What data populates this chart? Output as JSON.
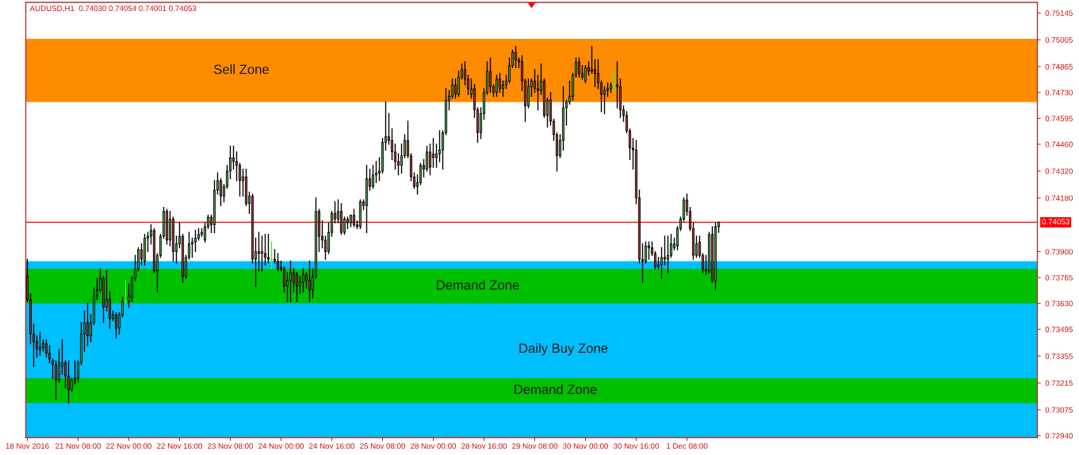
{
  "chart_data": {
    "type": "candlestick",
    "title": "AUDUSD,H1  0.74030 0.74054 0.74001 0.74053",
    "categories": [
      "18 Nov 2016",
      null,
      null,
      null,
      null,
      null,
      null,
      null,
      null,
      null,
      null,
      null,
      null,
      null,
      null,
      null,
      "21 Nov 08:00",
      null,
      null,
      null,
      null,
      null,
      null,
      null,
      null,
      null,
      null,
      null,
      null,
      null,
      null,
      null,
      "22 Nov 00:00",
      null,
      null,
      null,
      null,
      null,
      null,
      null,
      null,
      null,
      null,
      null,
      null,
      null,
      null,
      null,
      "22 Nov 16:00",
      null,
      null,
      null,
      null,
      null,
      null,
      null,
      null,
      null,
      null,
      null,
      null,
      null,
      null,
      null,
      "23 Nov 08:00",
      null,
      null,
      null,
      null,
      null,
      null,
      null,
      null,
      null,
      null,
      null,
      null,
      null,
      null,
      null,
      "24 Nov 00:00",
      null,
      null,
      null,
      null,
      null,
      null,
      null,
      null,
      null,
      null,
      null,
      null,
      null,
      null,
      null,
      "24 Nov 16:00",
      null,
      null,
      null,
      null,
      null,
      null,
      null,
      null,
      null,
      null,
      null,
      null,
      null,
      null,
      null,
      "25 Nov 08:00",
      null,
      null,
      null,
      null,
      null,
      null,
      null,
      null,
      null,
      null,
      null,
      null,
      null,
      null,
      null,
      "28 Nov 00:00",
      null,
      null,
      null,
      null,
      null,
      null,
      null,
      null,
      null,
      null,
      null,
      null,
      null,
      null,
      null,
      "28 Nov 16:00",
      null,
      null,
      null,
      null,
      null,
      null,
      null,
      null,
      null,
      null,
      null,
      null,
      null,
      null,
      null,
      "29 Nov 08:00",
      null,
      null,
      null,
      null,
      null,
      null,
      null,
      null,
      null,
      null,
      null,
      null,
      null,
      null,
      null,
      "30 Nov 00:00",
      null,
      null,
      null,
      null,
      null,
      null,
      null,
      null,
      null,
      null,
      null,
      null,
      null,
      null,
      null,
      "30 Nov 16:00",
      null,
      null,
      null,
      null,
      null,
      null,
      null,
      null,
      null,
      null,
      null,
      null,
      null,
      null,
      null,
      "1 Dec 08:00",
      null,
      null,
      null,
      null,
      null,
      null,
      null,
      null,
      null,
      null,
      null,
      null,
      null,
      null,
      null,
      null,
      null,
      null,
      null,
      null,
      null,
      null,
      null,
      null,
      null,
      null,
      null,
      null,
      null,
      null,
      null,
      null,
      null,
      null,
      null,
      null,
      null,
      null,
      null,
      null,
      null,
      null,
      null,
      null,
      null,
      null,
      null,
      null,
      null,
      null,
      null,
      null,
      null,
      null,
      null,
      null,
      null,
      null,
      null,
      null,
      null,
      null,
      null,
      null,
      null,
      null,
      null,
      null,
      null,
      null,
      null,
      null,
      null,
      null,
      null,
      null,
      null,
      null,
      null,
      null,
      null,
      null,
      null,
      null,
      null,
      null,
      null,
      null,
      null,
      null,
      null,
      null,
      null,
      null,
      null,
      null,
      null,
      null,
      null,
      null,
      null,
      null,
      null,
      null,
      null,
      null,
      null,
      null,
      null,
      null
    ],
    "ohlc": [
      [
        0.7377,
        0.7386,
        0.7364,
        0.7365
      ],
      [
        0.7365,
        0.7368,
        0.7342,
        0.7347
      ],
      [
        0.7347,
        0.7352,
        0.733,
        0.7343
      ],
      [
        0.7343,
        0.7346,
        0.7335,
        0.7339
      ],
      [
        0.7339,
        0.7348,
        0.7336,
        0.734
      ],
      [
        0.734,
        0.7344,
        0.7338,
        0.7342
      ],
      [
        0.7342,
        0.7344,
        0.7335,
        0.7337
      ],
      [
        0.7337,
        0.7341,
        0.7332,
        0.7334
      ],
      [
        0.7333,
        0.7334,
        0.7324,
        0.7331
      ],
      [
        0.7331,
        0.7333,
        0.7313,
        0.7323
      ],
      [
        0.7323,
        0.7339,
        0.7322,
        0.7332
      ],
      [
        0.733,
        0.7344,
        0.7326,
        0.7332
      ],
      [
        0.7332,
        0.7333,
        0.7319,
        0.7325
      ],
      [
        0.7325,
        0.7333,
        0.7311,
        0.7318
      ],
      [
        0.7318,
        0.7324,
        0.7317,
        0.7323
      ],
      [
        0.7323,
        0.7333,
        0.7321,
        0.7324
      ],
      [
        0.7324,
        0.7333,
        0.7322,
        0.7332
      ],
      [
        0.7332,
        0.7353,
        0.7331,
        0.7347
      ],
      [
        0.7347,
        0.7359,
        0.7338,
        0.7353
      ],
      [
        0.7353,
        0.7363,
        0.7341,
        0.7346
      ],
      [
        0.7346,
        0.7357,
        0.7343,
        0.7353
      ],
      [
        0.7353,
        0.7371,
        0.7352,
        0.7367
      ],
      [
        0.7367,
        0.7376,
        0.7365,
        0.737
      ],
      [
        0.737,
        0.7381,
        0.7369,
        0.7376
      ],
      [
        0.7376,
        0.7377,
        0.7353,
        0.7361
      ],
      [
        0.7361,
        0.738,
        0.7359,
        0.7365
      ],
      [
        0.7365,
        0.7369,
        0.735,
        0.7355
      ],
      [
        0.7355,
        0.7359,
        0.7354,
        0.7357
      ],
      [
        0.7357,
        0.7358,
        0.7345,
        0.735
      ],
      [
        0.735,
        0.7358,
        0.7347,
        0.7357
      ],
      [
        0.7357,
        0.7366,
        0.7356,
        0.7364
      ],
      [
        0.7364,
        0.7375,
        0.7363,
        0.7364
      ],
      [
        0.7364,
        0.7373,
        0.7361,
        0.7367
      ],
      [
        0.7366,
        0.7377,
        0.7364,
        0.7376
      ],
      [
        0.7376,
        0.7388,
        0.7375,
        0.7381
      ],
      [
        0.7381,
        0.7392,
        0.738,
        0.7391
      ],
      [
        0.7391,
        0.7394,
        0.7383,
        0.7386
      ],
      [
        0.7385,
        0.7399,
        0.7383,
        0.7397
      ],
      [
        0.7397,
        0.74,
        0.739,
        0.7398
      ],
      [
        0.7398,
        0.7404,
        0.7394,
        0.7401
      ],
      [
        0.7401,
        0.7402,
        0.7379,
        0.738
      ],
      [
        0.738,
        0.7389,
        0.7369,
        0.7388
      ],
      [
        0.7388,
        0.7399,
        0.7387,
        0.7398
      ],
      [
        0.7398,
        0.7413,
        0.7397,
        0.7411
      ],
      [
        0.7411,
        0.7412,
        0.7394,
        0.7396
      ],
      [
        0.7396,
        0.7411,
        0.7393,
        0.7407
      ],
      [
        0.7407,
        0.7408,
        0.7385,
        0.739
      ],
      [
        0.739,
        0.7398,
        0.7384,
        0.7394
      ],
      [
        0.7394,
        0.7405,
        0.7392,
        0.7398
      ],
      [
        0.7398,
        0.7399,
        0.7374,
        0.7377
      ],
      [
        0.7377,
        0.7388,
        0.7376,
        0.7387
      ],
      [
        0.7387,
        0.74,
        0.7386,
        0.7394
      ],
      [
        0.7394,
        0.7397,
        0.7387,
        0.7395
      ],
      [
        0.7395,
        0.7401,
        0.739,
        0.7397
      ],
      [
        0.7397,
        0.7402,
        0.7396,
        0.7399
      ],
      [
        0.7399,
        0.7402,
        0.7398,
        0.74
      ],
      [
        0.7396,
        0.7405,
        0.7395,
        0.7403
      ],
      [
        0.7403,
        0.7409,
        0.7402,
        0.7408
      ],
      [
        0.7408,
        0.7409,
        0.74,
        0.7404
      ],
      [
        0.7404,
        0.7427,
        0.74,
        0.7422
      ],
      [
        0.7422,
        0.7431,
        0.742,
        0.7427
      ],
      [
        0.7427,
        0.7428,
        0.7414,
        0.7419
      ],
      [
        0.7419,
        0.7425,
        0.7416,
        0.7424
      ],
      [
        0.7424,
        0.7435,
        0.7423,
        0.7432
      ],
      [
        0.7432,
        0.7445,
        0.7428,
        0.7439
      ],
      [
        0.7439,
        0.7445,
        0.7433,
        0.7437
      ],
      [
        0.7437,
        0.7442,
        0.7427,
        0.7435
      ],
      [
        0.7435,
        0.7436,
        0.7419,
        0.7427
      ],
      [
        0.7427,
        0.7433,
        0.7419,
        0.7429
      ],
      [
        0.7429,
        0.7433,
        0.7414,
        0.7415
      ],
      [
        0.7415,
        0.7421,
        0.741,
        0.7419
      ],
      [
        0.7419,
        0.742,
        0.7384,
        0.7386
      ],
      [
        0.7386,
        0.7397,
        0.7372,
        0.739
      ],
      [
        0.739,
        0.74,
        0.738,
        0.7389
      ],
      [
        0.739,
        0.7398,
        0.738,
        0.7389
      ],
      [
        0.7389,
        0.7399,
        0.7383,
        0.7387
      ],
      [
        0.7387,
        0.7399,
        0.7384,
        0.7386
      ],
      [
        0.7386,
        0.7395,
        0.7381,
        0.7386
      ],
      [
        0.7386,
        0.7391,
        0.7384,
        0.7385
      ],
      [
        0.7385,
        0.7389,
        0.738,
        0.7381
      ],
      [
        0.7381,
        0.7385,
        0.738,
        0.7382
      ],
      [
        0.7381,
        0.7382,
        0.7369,
        0.7372
      ],
      [
        0.7372,
        0.7379,
        0.7364,
        0.7375
      ],
      [
        0.7375,
        0.7385,
        0.7364,
        0.7379
      ],
      [
        0.7379,
        0.7381,
        0.7369,
        0.7374
      ],
      [
        0.7378,
        0.7379,
        0.7364,
        0.7372
      ],
      [
        0.7372,
        0.7377,
        0.7368,
        0.7374
      ],
      [
        0.7374,
        0.7381,
        0.7369,
        0.7378
      ],
      [
        0.7378,
        0.7379,
        0.7371,
        0.7375
      ],
      [
        0.7375,
        0.7385,
        0.7364,
        0.737
      ],
      [
        0.737,
        0.7381,
        0.7366,
        0.7377
      ],
      [
        0.7377,
        0.7418,
        0.7376,
        0.7411
      ],
      [
        0.7411,
        0.7412,
        0.739,
        0.7398
      ],
      [
        0.7398,
        0.7406,
        0.7392,
        0.7396
      ],
      [
        0.7396,
        0.7398,
        0.7386,
        0.739
      ],
      [
        0.739,
        0.7405,
        0.7389,
        0.74
      ],
      [
        0.74,
        0.7411,
        0.7398,
        0.741
      ],
      [
        0.741,
        0.7416,
        0.7405,
        0.7407
      ],
      [
        0.7407,
        0.7417,
        0.7405,
        0.7411
      ],
      [
        0.7411,
        0.7415,
        0.7399,
        0.74
      ],
      [
        0.74,
        0.7408,
        0.7399,
        0.7407
      ],
      [
        0.7407,
        0.7408,
        0.7402,
        0.7405
      ],
      [
        0.7405,
        0.7409,
        0.7403,
        0.7409
      ],
      [
        0.7409,
        0.7412,
        0.7403,
        0.7404
      ],
      [
        0.7404,
        0.7406,
        0.7402,
        0.7403
      ],
      [
        0.7403,
        0.7417,
        0.7402,
        0.7416
      ],
      [
        0.7416,
        0.7417,
        0.7412,
        0.7414
      ],
      [
        0.7414,
        0.7435,
        0.74,
        0.7428
      ],
      [
        0.7428,
        0.7433,
        0.7422,
        0.7424
      ],
      [
        0.7424,
        0.7435,
        0.7423,
        0.743
      ],
      [
        0.743,
        0.7437,
        0.7426,
        0.7431
      ],
      [
        0.7431,
        0.7439,
        0.7427,
        0.7432
      ],
      [
        0.7432,
        0.7449,
        0.7431,
        0.7447
      ],
      [
        0.7447,
        0.7468,
        0.7443,
        0.745
      ],
      [
        0.745,
        0.7462,
        0.7446,
        0.7448
      ],
      [
        0.7448,
        0.7454,
        0.7438,
        0.7442
      ],
      [
        0.7442,
        0.7446,
        0.7433,
        0.7437
      ],
      [
        0.7437,
        0.7441,
        0.743,
        0.7435
      ],
      [
        0.7435,
        0.7446,
        0.7431,
        0.744
      ],
      [
        0.744,
        0.7451,
        0.7439,
        0.7448
      ],
      [
        0.7448,
        0.7458,
        0.7439,
        0.744
      ],
      [
        0.744,
        0.7441,
        0.7427,
        0.7429
      ],
      [
        0.7429,
        0.7431,
        0.7423,
        0.7424
      ],
      [
        0.7424,
        0.743,
        0.742,
        0.7426
      ],
      [
        0.7426,
        0.7436,
        0.7425,
        0.7435
      ],
      [
        0.7435,
        0.7438,
        0.7429,
        0.7433
      ],
      [
        0.7433,
        0.7445,
        0.7432,
        0.7442
      ],
      [
        0.7442,
        0.7446,
        0.743,
        0.7434
      ],
      [
        0.7441,
        0.7449,
        0.7434,
        0.7439
      ],
      [
        0.7439,
        0.7446,
        0.7434,
        0.7441
      ],
      [
        0.7441,
        0.7453,
        0.7437,
        0.7443
      ],
      [
        0.7443,
        0.7453,
        0.7433,
        0.7452
      ],
      [
        0.7452,
        0.7475,
        0.7451,
        0.7469
      ],
      [
        0.7469,
        0.7474,
        0.7464,
        0.7471
      ],
      [
        0.7471,
        0.748,
        0.747,
        0.7477
      ],
      [
        0.7477,
        0.748,
        0.747,
        0.7472
      ],
      [
        0.7472,
        0.7484,
        0.7471,
        0.7481
      ],
      [
        0.7481,
        0.7488,
        0.748,
        0.7485
      ],
      [
        0.7485,
        0.7489,
        0.7477,
        0.748
      ],
      [
        0.748,
        0.7482,
        0.7472,
        0.7475
      ],
      [
        0.7472,
        0.748,
        0.747,
        0.7475
      ],
      [
        0.7475,
        0.7477,
        0.746,
        0.7464
      ],
      [
        0.7464,
        0.7465,
        0.7447,
        0.7452
      ],
      [
        0.7452,
        0.7465,
        0.7449,
        0.7462
      ],
      [
        0.7462,
        0.7475,
        0.7459,
        0.7473
      ],
      [
        0.7473,
        0.7489,
        0.7472,
        0.7484
      ],
      [
        0.7484,
        0.7491,
        0.7473,
        0.7476
      ],
      [
        0.7476,
        0.7477,
        0.7471,
        0.7473
      ],
      [
        0.7473,
        0.7482,
        0.7471,
        0.748
      ],
      [
        0.748,
        0.7483,
        0.7473,
        0.7475
      ],
      [
        0.7475,
        0.7479,
        0.7471,
        0.7477
      ],
      [
        0.7477,
        0.7482,
        0.7475,
        0.7479
      ],
      [
        0.7479,
        0.7491,
        0.7478,
        0.7487
      ],
      [
        0.7487,
        0.7495,
        0.7486,
        0.7494
      ],
      [
        0.7494,
        0.7497,
        0.7486,
        0.749
      ],
      [
        0.749,
        0.7491,
        0.7486,
        0.7489
      ],
      [
        0.7489,
        0.7492,
        0.7474,
        0.7479
      ],
      [
        0.7479,
        0.748,
        0.7458,
        0.7466
      ],
      [
        0.7466,
        0.748,
        0.7465,
        0.7476
      ],
      [
        0.7476,
        0.748,
        0.7471,
        0.7479
      ],
      [
        0.7479,
        0.7485,
        0.7473,
        0.7475
      ],
      [
        0.7475,
        0.7482,
        0.7464,
        0.7474
      ],
      [
        0.7474,
        0.7488,
        0.7472,
        0.7479
      ],
      [
        0.7479,
        0.748,
        0.746,
        0.7461
      ],
      [
        0.7461,
        0.747,
        0.7455,
        0.7469
      ],
      [
        0.7469,
        0.7473,
        0.7456,
        0.7458
      ],
      [
        0.7458,
        0.7459,
        0.7448,
        0.7451
      ],
      [
        0.7451,
        0.7452,
        0.7432,
        0.744
      ],
      [
        0.744,
        0.7451,
        0.7439,
        0.7448
      ],
      [
        0.7448,
        0.7476,
        0.7443,
        0.7465
      ],
      [
        0.7465,
        0.7469,
        0.7456,
        0.7468
      ],
      [
        0.7468,
        0.7479,
        0.7467,
        0.7471
      ],
      [
        0.7471,
        0.7483,
        0.7469,
        0.7482
      ],
      [
        0.7482,
        0.7491,
        0.7481,
        0.7489
      ],
      [
        0.7489,
        0.7491,
        0.7481,
        0.7483
      ],
      [
        0.7483,
        0.7487,
        0.748,
        0.7481
      ],
      [
        0.7479,
        0.7487,
        0.7478,
        0.7486
      ],
      [
        0.7486,
        0.7489,
        0.7482,
        0.7484
      ],
      [
        0.7485,
        0.7497,
        0.7483,
        0.7484
      ],
      [
        0.7485,
        0.749,
        0.7476,
        0.7483
      ],
      [
        0.7483,
        0.749,
        0.7475,
        0.7478
      ],
      [
        0.7478,
        0.7479,
        0.7463,
        0.7472
      ],
      [
        0.7472,
        0.7476,
        0.7462,
        0.7474
      ],
      [
        0.7474,
        0.7478,
        0.7471,
        0.7475
      ],
      [
        0.7475,
        0.7478,
        0.7473,
        0.7477
      ],
      [
        0.7477,
        0.7484,
        0.7473,
        0.7477
      ],
      [
        0.7477,
        0.7489,
        0.7465,
        0.7476
      ],
      [
        0.7476,
        0.748,
        0.746,
        0.7464
      ],
      [
        0.7464,
        0.7466,
        0.7458,
        0.7461
      ],
      [
        0.7461,
        0.7463,
        0.7452,
        0.7453
      ],
      [
        0.7453,
        0.7454,
        0.7438,
        0.7444
      ],
      [
        0.7444,
        0.7449,
        0.7433,
        0.7443
      ],
      [
        0.7443,
        0.7448,
        0.7415,
        0.7418
      ],
      [
        0.7418,
        0.7422,
        0.7384,
        0.7386
      ],
      [
        0.7386,
        0.7394,
        0.7374,
        0.7385
      ],
      [
        0.7385,
        0.7395,
        0.7384,
        0.7393
      ],
      [
        0.7393,
        0.7395,
        0.7386,
        0.7392
      ],
      [
        0.7392,
        0.7395,
        0.7388,
        0.7389
      ],
      [
        0.7389,
        0.739,
        0.7381,
        0.7382
      ],
      [
        0.7382,
        0.7387,
        0.7381,
        0.7383
      ],
      [
        0.7383,
        0.7392,
        0.7376,
        0.7387
      ],
      [
        0.7386,
        0.7398,
        0.7383,
        0.7387
      ],
      [
        0.7386,
        0.7398,
        0.7379,
        0.7388
      ],
      [
        0.7388,
        0.7399,
        0.7387,
        0.7394
      ],
      [
        0.7392,
        0.7397,
        0.7391,
        0.7394
      ],
      [
        0.7393,
        0.7403,
        0.7391,
        0.7402
      ],
      [
        0.7402,
        0.7408,
        0.7401,
        0.7407
      ],
      [
        0.7407,
        0.7418,
        0.7406,
        0.7417
      ],
      [
        0.7417,
        0.742,
        0.7409,
        0.7411
      ],
      [
        0.7411,
        0.7413,
        0.7401,
        0.7402
      ],
      [
        0.7402,
        0.7405,
        0.7386,
        0.7388
      ],
      [
        0.7388,
        0.7398,
        0.7387,
        0.7394
      ],
      [
        0.7395,
        0.7398,
        0.7387,
        0.7388
      ],
      [
        0.7388,
        0.7389,
        0.7379,
        0.7381
      ],
      [
        0.7381,
        0.7388,
        0.7378,
        0.738
      ],
      [
        0.738,
        0.74,
        0.7379,
        0.7399
      ],
      [
        0.7399,
        0.7403,
        0.7374,
        0.7375
      ],
      [
        0.7375,
        0.7405,
        0.737,
        0.7403
      ],
      [
        0.7403,
        0.74054,
        0.74001,
        0.74053
      ],
      null,
      null,
      null,
      null,
      null,
      null,
      null,
      null,
      null,
      null,
      null,
      null,
      null,
      null,
      null,
      null,
      null,
      null,
      null,
      null,
      null,
      null,
      null,
      null,
      null,
      null,
      null,
      null,
      null,
      null,
      null,
      null,
      null,
      null,
      null,
      null,
      null,
      null,
      null,
      null,
      null,
      null,
      null,
      null,
      null,
      null,
      null,
      null,
      null,
      null,
      null,
      null,
      null,
      null,
      null,
      null,
      null,
      null,
      null,
      null,
      null,
      null,
      null,
      null,
      null,
      null,
      null,
      null,
      null,
      null,
      null,
      null,
      null,
      null,
      null,
      null,
      null,
      null,
      null,
      null,
      null,
      null,
      null,
      null,
      null,
      null,
      null,
      null,
      null,
      null,
      null,
      null,
      null,
      null,
      null,
      null,
      null,
      null,
      null,
      null
    ],
    "colors": [
      "#a52a2a",
      "#a52a2a",
      "#a52a2a",
      "#a52a2a",
      "#3c9c3c",
      "#3c9c3c",
      "#a52a2a",
      "#a52a2a",
      "#a52a2a",
      "#a52a2a",
      "#3c9c3c",
      "#3c9c3c",
      "#a52a2a",
      "#a52a2a",
      "#3c9c3c",
      "#3c9c3c",
      "#3c9c3c",
      "#3c9c3c",
      "#3c9c3c",
      "#a52a2a",
      "#3c9c3c",
      "#3c9c3c",
      "#3c9c3c",
      "#3c9c3c",
      "#a52a2a",
      "#3c9c3c",
      "#a52a2a",
      "#3c9c3c",
      "#a52a2a",
      "#3c9c3c",
      "#3c9c3c",
      "#40f040",
      "#3c9c3c",
      "#3c9c3c",
      "#3c9c3c",
      "#3c9c3c",
      "#a52a2a",
      "#3c9c3c",
      "#3c9c3c",
      "#3c9c3c",
      "#a52a2a",
      "#3c9c3c",
      "#3c9c3c",
      "#3c9c3c",
      "#a52a2a",
      "#3c9c3c",
      "#a52a2a",
      "#3c9c3c",
      "#3c9c3c",
      "#a52a2a",
      "#3c9c3c",
      "#3c9c3c",
      "#3c9c3c",
      "#3c9c3c",
      "#3c9c3c",
      "#3c9c3c",
      "#3c9c3c",
      "#3c9c3c",
      "#a52a2a",
      "#3c9c3c",
      "#3c9c3c",
      "#a52a2a",
      "#3c9c3c",
      "#3c9c3c",
      "#3c9c3c",
      "#a52a2a",
      "#a52a2a",
      "#a52a2a",
      "#3c9c3c",
      "#a52a2a",
      "#3c9c3c",
      "#a52a2a",
      "#3c9c3c",
      "#a52a2a",
      "#a52a2a",
      "#a52a2a",
      "#a52a2a",
      "#40f040",
      "#a52a2a",
      "#a52a2a",
      "#3c9c3c",
      "#a52a2a",
      "#3c9c3c",
      "#3c9c3c",
      "#a52a2a",
      "#a52a2a",
      "#3c9c3c",
      "#3c9c3c",
      "#a52a2a",
      "#a52a2a",
      "#3c9c3c",
      "#3c9c3c",
      "#a52a2a",
      "#a52a2a",
      "#a52a2a",
      "#3c9c3c",
      "#3c9c3c",
      "#a52a2a",
      "#3c9c3c",
      "#a52a2a",
      "#3c9c3c",
      "#a52a2a",
      "#3c9c3c",
      "#a52a2a",
      "#a52a2a",
      "#3c9c3c",
      "#a52a2a",
      "#3c9c3c",
      "#a52a2a",
      "#3c9c3c",
      "#3c9c3c",
      "#3c9c3c",
      "#3c9c3c",
      "#3c9c3c",
      "#a52a2a",
      "#a52a2a",
      "#a52a2a",
      "#a52a2a",
      "#3c9c3c",
      "#3c9c3c",
      "#a52a2a",
      "#a52a2a",
      "#a52a2a",
      "#3c9c3c",
      "#3c9c3c",
      "#a52a2a",
      "#3c9c3c",
      "#a52a2a",
      "#a52a2a",
      "#3c9c3c",
      "#3c9c3c",
      "#3c9c3c",
      "#3c9c3c",
      "#3c9c3c",
      "#3c9c3c",
      "#a52a2a",
      "#3c9c3c",
      "#3c9c3c",
      "#a52a2a",
      "#a52a2a",
      "#3c9c3c",
      "#a52a2a",
      "#a52a2a",
      "#3c9c3c",
      "#3c9c3c",
      "#3c9c3c",
      "#a52a2a",
      "#a52a2a",
      "#3c9c3c",
      "#a52a2a",
      "#3c9c3c",
      "#3c9c3c",
      "#3c9c3c",
      "#3c9c3c",
      "#a52a2a",
      "#a52a2a",
      "#a52a2a",
      "#a52a2a",
      "#3c9c3c",
      "#3c9c3c",
      "#a52a2a",
      "#a52a2a",
      "#3c9c3c",
      "#a52a2a",
      "#3c9c3c",
      "#a52a2a",
      "#a52a2a",
      "#a52a2a",
      "#3c9c3c",
      "#3c9c3c",
      "#3c9c3c",
      "#3c9c3c",
      "#3c9c3c",
      "#3c9c3c",
      "#a52a2a",
      "#a52a2a",
      "#3c9c3c",
      "#a52a2a",
      "#a52a2a",
      "#a52a2a",
      "#a52a2a",
      "#a52a2a",
      "#3c9c3c",
      "#3c9c3c",
      "#3c9c3c",
      "#40f040",
      "#a52a2a",
      "#a52a2a",
      "#a52a2a",
      "#a52a2a",
      "#a52a2a",
      "#a52a2a",
      "#a52a2a",
      "#a52a2a",
      "#a52a2a",
      "#3c9c3c",
      "#a52a2a",
      "#a52a2a",
      "#a52a2a",
      "#3c9c3c",
      "#3c9c3c",
      "#3c9c3c",
      "#3c9c3c",
      "#3c9c3c",
      "#3c9c3c",
      "#3c9c3c",
      "#3c9c3c",
      "#3c9c3c",
      "#a52a2a",
      "#a52a2a",
      "#a52a2a",
      "#3c9c3c",
      "#a52a2a",
      "#a52a2a",
      "#a52a2a",
      "#3c9c3c",
      "#a52a2a",
      "#3c9c3c",
      "#3c9c3c",
      null,
      null,
      null,
      null,
      null,
      null,
      null,
      null,
      null,
      null,
      null,
      null,
      null,
      null,
      null,
      null,
      null,
      null,
      null,
      null,
      null,
      null,
      null,
      null,
      null,
      null,
      null,
      null,
      null,
      null,
      null,
      null,
      null,
      null,
      null,
      null,
      null,
      null,
      null,
      null,
      null,
      null,
      null,
      null,
      null,
      null,
      null,
      null,
      null,
      null,
      null,
      null,
      null,
      null,
      null,
      null,
      null,
      null,
      null,
      null,
      null,
      null,
      null,
      null,
      null,
      null,
      null,
      null,
      null,
      null,
      null,
      null,
      null,
      null,
      null,
      null,
      null,
      null,
      null,
      null,
      null,
      null,
      null,
      null,
      null,
      null,
      null,
      null,
      null,
      null,
      null,
      null,
      null,
      null,
      null,
      null,
      null,
      null,
      null,
      null
    ],
    "ylim": [
      0.7293,
      0.752
    ],
    "yticks": [
      {
        "value": 0.75145,
        "label": "0.75145"
      },
      {
        "value": 0.75005,
        "label": "0.75005"
      },
      {
        "value": 0.74865,
        "label": "0.74865"
      },
      {
        "value": 0.7473,
        "label": "0.74730"
      },
      {
        "value": 0.74595,
        "label": "0.74595"
      },
      {
        "value": 0.7446,
        "label": "0.74460"
      },
      {
        "value": 0.7432,
        "label": "0.74320"
      },
      {
        "value": 0.7418,
        "label": "0.74180"
      },
      {
        "value": 0.739,
        "label": "0.73900"
      },
      {
        "value": 0.73765,
        "label": "0.73765"
      },
      {
        "value": 0.7363,
        "label": "0.73630"
      },
      {
        "value": 0.73495,
        "label": "0.73495"
      },
      {
        "value": 0.73355,
        "label": "0.73355"
      },
      {
        "value": 0.73215,
        "label": "0.73215"
      },
      {
        "value": 0.73075,
        "label": "0.73075"
      },
      {
        "value": 0.7294,
        "label": "0.72940"
      }
    ],
    "bands": [
      {
        "axis": "y",
        "from": 0.7293,
        "to": 0.7385,
        "label": "Daily Buy Zone",
        "color": "#00bfff"
      },
      {
        "axis": "y",
        "from": 0.7363,
        "to": 0.7381,
        "label": "Demand Zone",
        "color": "#00c000"
      },
      {
        "axis": "y",
        "from": 0.7311,
        "to": 0.7324,
        "label": "Demand Zone",
        "color": "#00c000"
      },
      {
        "axis": "y",
        "from": 0.7468,
        "to": 0.7501,
        "label": "Sell Zone",
        "color": "#ff8c00"
      }
    ],
    "ref_lines": [
      {
        "axis": "y",
        "value": 0.74053,
        "label": "0.74053",
        "color": "#ff0000"
      }
    ]
  }
}
